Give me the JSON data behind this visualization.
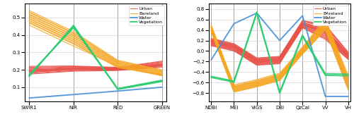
{
  "left": {
    "x_labels": [
      "SWIR1",
      "NIR",
      "RED",
      "GREEN"
    ],
    "ylim": [
      0.02,
      0.58
    ],
    "yticks": [
      0.1,
      0.2,
      0.3,
      0.4,
      0.5
    ],
    "urban": {
      "color": "#e8534a",
      "lines": [
        [
          0.18,
          0.195,
          0.198,
          0.218
        ],
        [
          0.185,
          0.2,
          0.2,
          0.222
        ],
        [
          0.19,
          0.203,
          0.202,
          0.226
        ],
        [
          0.195,
          0.207,
          0.204,
          0.23
        ],
        [
          0.2,
          0.21,
          0.206,
          0.234
        ],
        [
          0.205,
          0.213,
          0.208,
          0.238
        ],
        [
          0.21,
          0.216,
          0.21,
          0.242
        ],
        [
          0.215,
          0.219,
          0.212,
          0.246
        ],
        [
          0.22,
          0.222,
          0.214,
          0.25
        ],
        [
          0.175,
          0.192,
          0.196,
          0.214
        ],
        [
          0.188,
          0.201,
          0.201,
          0.224
        ],
        [
          0.193,
          0.205,
          0.203,
          0.228
        ],
        [
          0.198,
          0.209,
          0.205,
          0.232
        ]
      ]
    },
    "bareland": {
      "color": "#f5a623",
      "lines": [
        [
          0.54,
          0.42,
          0.255,
          0.2
        ],
        [
          0.528,
          0.408,
          0.248,
          0.193
        ],
        [
          0.516,
          0.396,
          0.241,
          0.186
        ],
        [
          0.504,
          0.384,
          0.234,
          0.179
        ],
        [
          0.492,
          0.372,
          0.227,
          0.172
        ],
        [
          0.48,
          0.36,
          0.22,
          0.165
        ],
        [
          0.468,
          0.348,
          0.213,
          0.168
        ],
        [
          0.456,
          0.336,
          0.22,
          0.173
        ],
        [
          0.532,
          0.412,
          0.25,
          0.196
        ],
        [
          0.52,
          0.4,
          0.243,
          0.189
        ],
        [
          0.508,
          0.388,
          0.236,
          0.182
        ],
        [
          0.496,
          0.376,
          0.229,
          0.175
        ],
        [
          0.484,
          0.364,
          0.222,
          0.168
        ],
        [
          0.472,
          0.352,
          0.215,
          0.171
        ]
      ]
    },
    "water": {
      "color": "#4a90d9",
      "lines": [
        [
          0.038,
          0.058,
          0.078,
          0.1
        ]
      ]
    },
    "vegetation": {
      "color": "#2ecc71",
      "lines": [
        [
          0.162,
          0.455,
          0.088,
          0.133
        ],
        [
          0.167,
          0.448,
          0.09,
          0.136
        ],
        [
          0.172,
          0.442,
          0.092,
          0.14
        ]
      ]
    }
  },
  "right": {
    "x_labels": [
      "NDBI",
      "MEI",
      "VIGS",
      "DBI",
      "QzCal",
      "VV",
      "VH"
    ],
    "ylim": [
      -0.95,
      0.9
    ],
    "yticks": [
      -0.8,
      -0.6,
      -0.4,
      -0.2,
      0.0,
      0.2,
      0.4,
      0.6,
      0.8
    ],
    "urban": {
      "color": "#e8534a",
      "lines": [
        [
          0.2,
          0.1,
          -0.17,
          -0.14,
          0.54,
          0.42,
          -0.06
        ],
        [
          0.18,
          0.08,
          -0.19,
          -0.16,
          0.52,
          0.38,
          -0.08
        ],
        [
          0.16,
          0.06,
          -0.21,
          -0.18,
          0.5,
          0.34,
          -0.1
        ],
        [
          0.14,
          0.04,
          -0.23,
          -0.2,
          0.48,
          0.3,
          -0.12
        ],
        [
          0.12,
          0.02,
          -0.25,
          -0.22,
          0.46,
          0.26,
          -0.14
        ],
        [
          0.22,
          0.12,
          -0.15,
          -0.12,
          0.56,
          0.46,
          -0.04
        ],
        [
          0.24,
          0.14,
          -0.13,
          -0.1,
          0.58,
          0.5,
          -0.02
        ],
        [
          0.1,
          0.0,
          -0.27,
          -0.24,
          0.44,
          0.22,
          -0.16
        ],
        [
          0.19,
          0.09,
          -0.18,
          -0.15,
          0.51,
          0.36,
          -0.09
        ],
        [
          0.15,
          0.05,
          -0.22,
          -0.19,
          0.49,
          0.32,
          -0.11
        ],
        [
          0.21,
          0.11,
          -0.16,
          -0.13,
          0.53,
          0.4,
          -0.07
        ],
        [
          0.17,
          0.07,
          -0.2,
          -0.17,
          0.51,
          0.36,
          -0.09
        ],
        [
          0.13,
          0.03,
          -0.24,
          -0.21,
          0.47,
          0.28,
          -0.13
        ],
        [
          0.23,
          0.13,
          -0.14,
          -0.11,
          0.57,
          0.48,
          -0.03
        ],
        [
          0.11,
          0.01,
          -0.26,
          -0.23,
          0.45,
          0.24,
          -0.15
        ],
        [
          0.2,
          0.1,
          -0.17,
          -0.14,
          0.54,
          0.42,
          -0.06
        ],
        [
          0.16,
          0.06,
          -0.21,
          -0.18,
          0.5,
          0.34,
          -0.1
        ],
        [
          0.18,
          0.08,
          -0.19,
          -0.16,
          0.52,
          0.38,
          -0.08
        ]
      ]
    },
    "bareland": {
      "color": "#f5a623",
      "lines": [
        [
          0.48,
          -0.66,
          -0.56,
          -0.44,
          0.06,
          0.58,
          -0.5
        ],
        [
          0.46,
          -0.68,
          -0.58,
          -0.46,
          0.04,
          0.55,
          -0.54
        ],
        [
          0.44,
          -0.7,
          -0.6,
          -0.48,
          0.02,
          0.52,
          -0.58
        ],
        [
          0.42,
          -0.72,
          -0.62,
          -0.5,
          0.0,
          0.49,
          -0.62
        ],
        [
          0.4,
          -0.74,
          -0.64,
          -0.52,
          -0.02,
          0.46,
          -0.66
        ],
        [
          0.38,
          -0.76,
          -0.66,
          -0.54,
          -0.04,
          0.43,
          -0.7
        ],
        [
          0.36,
          -0.78,
          -0.68,
          -0.56,
          -0.06,
          0.4,
          -0.74
        ],
        [
          0.5,
          -0.64,
          -0.54,
          -0.42,
          0.08,
          0.61,
          -0.46
        ],
        [
          0.47,
          -0.67,
          -0.57,
          -0.45,
          0.05,
          0.56,
          -0.52
        ],
        [
          0.45,
          -0.69,
          -0.59,
          -0.47,
          0.03,
          0.53,
          -0.56
        ],
        [
          0.43,
          -0.71,
          -0.61,
          -0.49,
          0.01,
          0.5,
          -0.6
        ],
        [
          0.41,
          -0.73,
          -0.63,
          -0.51,
          -0.01,
          0.47,
          -0.64
        ],
        [
          0.39,
          -0.75,
          -0.65,
          -0.53,
          -0.03,
          0.44,
          -0.68
        ],
        [
          0.37,
          -0.77,
          -0.67,
          -0.55,
          -0.05,
          0.41,
          -0.72
        ]
      ]
    },
    "water": {
      "color": "#4a90d9",
      "lines": [
        [
          -0.17,
          0.52,
          0.72,
          0.2,
          0.67,
          -0.86,
          -0.86
        ]
      ]
    },
    "vegetation": {
      "color": "#2ecc71",
      "lines": [
        [
          -0.48,
          -0.57,
          0.74,
          -0.78,
          0.3,
          -0.43,
          -0.44
        ],
        [
          -0.5,
          -0.59,
          0.72,
          -0.8,
          0.28,
          -0.46,
          -0.47
        ]
      ]
    }
  },
  "legend_left": {
    "urban_label": "Urban",
    "bareland_label": "Bareland",
    "water_label": "Water",
    "vegetation_label": "Vegetation"
  },
  "legend_right": {
    "urban_label": "Urban",
    "bareland_label": "BAreland",
    "water_label": "Water",
    "vegetation_label": "Vegetation"
  }
}
